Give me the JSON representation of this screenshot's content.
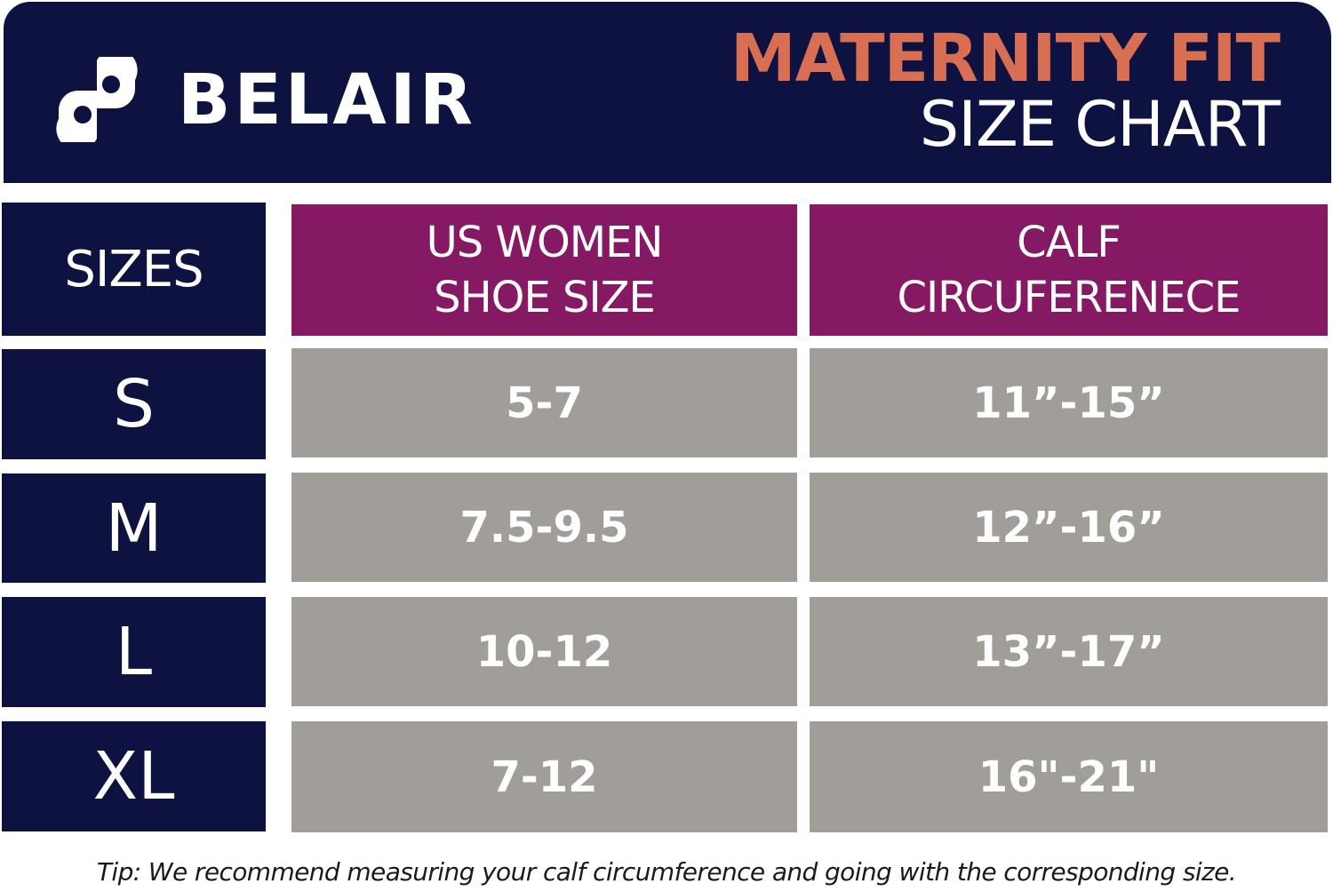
{
  "header": {
    "brand": "BELAIR",
    "title_line1": "MATERNITY FIT",
    "title_line2": "SIZE CHART",
    "logo_icon": "belair-logo-icon"
  },
  "colors": {
    "navy": "#0d1240",
    "magenta": "#861963",
    "gray": "#a19d98",
    "accent": "#d96f52"
  },
  "table": {
    "col_sizes": "SIZES",
    "col_shoe_line1": "US WOMEN",
    "col_shoe_line2": "SHOE SIZE",
    "col_calf_line1": "CALF",
    "col_calf_line2": "CIRCUFERENECE",
    "rows": [
      {
        "size": "S",
        "shoe": "5-7",
        "calf": "11”-15”"
      },
      {
        "size": "M",
        "shoe": "7.5-9.5",
        "calf": "12”-16”"
      },
      {
        "size": "L",
        "shoe": "10-12",
        "calf": "13”-17”"
      },
      {
        "size": "XL",
        "shoe": "7-12",
        "calf": "16\"-21\""
      }
    ]
  },
  "tip": "Tip: We recommend measuring your calf circumference and going with the corresponding size."
}
